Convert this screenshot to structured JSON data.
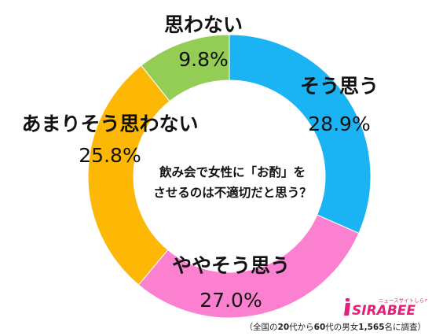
{
  "chart_data": {
    "type": "pie",
    "style": "donut",
    "title": "飲み会で女性に「お酌」をさせるのは不適切だと思う？",
    "title_lines": [
      "飲み会で女性に「お酌」を",
      "させるのは不適切だと思う？"
    ],
    "slices": [
      {
        "label": "そう思う",
        "value": 28.9,
        "value_label": "28.9%",
        "color": "#1ab4f5"
      },
      {
        "label": "ややそう思う",
        "value": 27.0,
        "value_label": "27.0%",
        "color": "#fb80d0"
      },
      {
        "label": "あまりそう思わない",
        "value": 25.8,
        "value_label": "25.8%",
        "color": "#fdb705"
      },
      {
        "label": "思わない",
        "value": 9.8,
        "value_label": "9.8%",
        "color": "#93cd56"
      }
    ],
    "start": "12 o'clock",
    "direction": "clockwise",
    "legend": "none"
  },
  "logo": {
    "text": "SIRABEE",
    "tagline": "ニュースサイトしらべぇ",
    "color": "#e4207a"
  },
  "footnote": {
    "open": "（全国の",
    "age_from": "20",
    "mid1": "代から",
    "age_to": "60",
    "mid2": "代の男女",
    "count": "1,565",
    "close": "名に調査）"
  }
}
